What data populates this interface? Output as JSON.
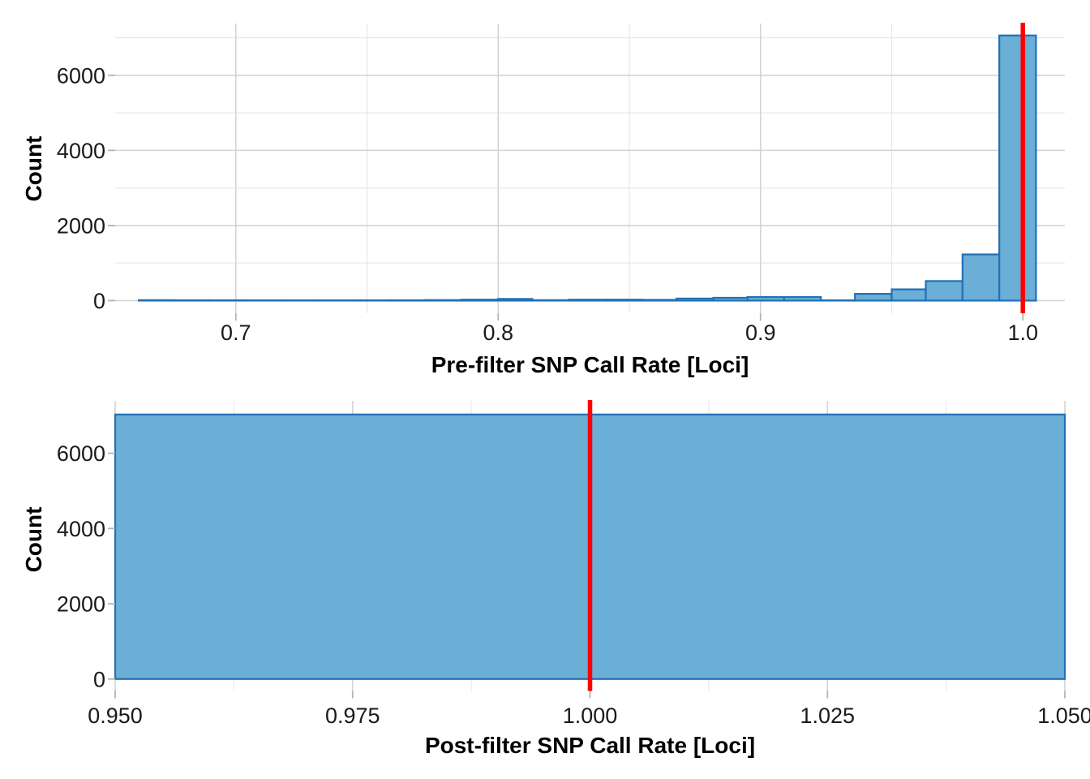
{
  "styles": {
    "background": "#FFFFFF",
    "bar_fill": "#6BAED6",
    "bar_stroke": "#2171B5",
    "vline_color": "#FF0000",
    "grid_major": "#D4D4D4",
    "grid_minor": "#E7E7E7",
    "axis_tick_color": "#B3B3B3",
    "tick_label_color": "#1A1A1A"
  },
  "chart_data": [
    {
      "type": "bar",
      "id": "pre-filter-histogram",
      "xlabel": "Pre-filter SNP Call Rate [Loci]",
      "ylabel": "Count",
      "vline_x": 1.0,
      "xlim": [
        0.654,
        1.016
      ],
      "ylim": [
        -336,
        7378
      ],
      "grid": true,
      "legend": "none",
      "x_ticks": [
        {
          "v": 0.7,
          "label": "0.7"
        },
        {
          "v": 0.8,
          "label": "0.8"
        },
        {
          "v": 0.9,
          "label": "0.9"
        },
        {
          "v": 1.0,
          "label": "1.0"
        }
      ],
      "x_minor": [
        0.75,
        0.85,
        0.95
      ],
      "y_ticks": [
        {
          "v": 0,
          "label": "0"
        },
        {
          "v": 2000,
          "label": "2000"
        },
        {
          "v": 4000,
          "label": "4000"
        },
        {
          "v": 6000,
          "label": "6000"
        }
      ],
      "y_minor": [
        1000,
        3000,
        5000,
        7000
      ],
      "binwidth": 0.0137,
      "bins": [
        {
          "x0": 0.663,
          "x1": 0.677,
          "count": 12
        },
        {
          "x0": 0.677,
          "x1": 0.69,
          "count": 10
        },
        {
          "x0": 0.69,
          "x1": 0.704,
          "count": 10
        },
        {
          "x0": 0.704,
          "x1": 0.718,
          "count": 8
        },
        {
          "x0": 0.718,
          "x1": 0.731,
          "count": 8
        },
        {
          "x0": 0.731,
          "x1": 0.745,
          "count": 8
        },
        {
          "x0": 0.745,
          "x1": 0.759,
          "count": 8
        },
        {
          "x0": 0.759,
          "x1": 0.772,
          "count": 10
        },
        {
          "x0": 0.772,
          "x1": 0.786,
          "count": 15
        },
        {
          "x0": 0.786,
          "x1": 0.8,
          "count": 25
        },
        {
          "x0": 0.8,
          "x1": 0.813,
          "count": 45
        },
        {
          "x0": 0.813,
          "x1": 0.827,
          "count": 12
        },
        {
          "x0": 0.827,
          "x1": 0.841,
          "count": 25
        },
        {
          "x0": 0.841,
          "x1": 0.855,
          "count": 25
        },
        {
          "x0": 0.855,
          "x1": 0.868,
          "count": 20
        },
        {
          "x0": 0.868,
          "x1": 0.882,
          "count": 55
        },
        {
          "x0": 0.882,
          "x1": 0.895,
          "count": 75
        },
        {
          "x0": 0.895,
          "x1": 0.909,
          "count": 95
        },
        {
          "x0": 0.909,
          "x1": 0.923,
          "count": 95
        },
        {
          "x0": 0.923,
          "x1": 0.936,
          "count": 8
        },
        {
          "x0": 0.936,
          "x1": 0.95,
          "count": 180
        },
        {
          "x0": 0.95,
          "x1": 0.963,
          "count": 300
        },
        {
          "x0": 0.963,
          "x1": 0.977,
          "count": 520
        },
        {
          "x0": 0.977,
          "x1": 0.991,
          "count": 1230
        },
        {
          "x0": 0.991,
          "x1": 1.005,
          "count": 7060
        }
      ]
    },
    {
      "type": "bar",
      "id": "post-filter-histogram",
      "xlabel": "Post-filter SNP Call Rate [Loci]",
      "ylabel": "Count",
      "vline_x": 1.0,
      "xlim": [
        0.95,
        1.05
      ],
      "ylim": [
        -318,
        7392
      ],
      "grid": true,
      "legend": "none",
      "x_ticks": [
        {
          "v": 0.95,
          "label": "0.950"
        },
        {
          "v": 0.975,
          "label": "0.975"
        },
        {
          "v": 1.0,
          "label": "1.000"
        },
        {
          "v": 1.025,
          "label": "1.025"
        },
        {
          "v": 1.05,
          "label": "1.050"
        }
      ],
      "x_minor": [
        0.9625,
        0.9875,
        1.0125,
        1.0375
      ],
      "y_ticks": [
        {
          "v": 0,
          "label": "0"
        },
        {
          "v": 2000,
          "label": "2000"
        },
        {
          "v": 4000,
          "label": "4000"
        },
        {
          "v": 6000,
          "label": "6000"
        }
      ],
      "y_minor": [
        1000,
        3000,
        5000,
        7000
      ],
      "binwidth": 0.1,
      "bins": [
        {
          "x0": 0.95,
          "x1": 1.05,
          "count": 7030
        }
      ]
    }
  ]
}
